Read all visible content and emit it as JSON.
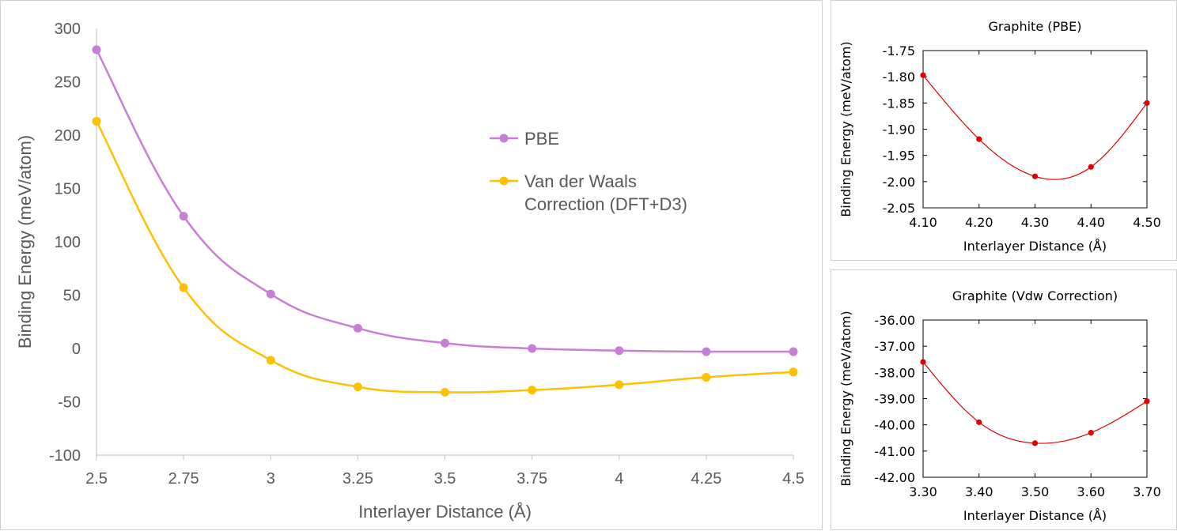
{
  "chart_data": [
    {
      "type": "line",
      "title": "",
      "xlabel": "Interlayer Distance (Å)",
      "ylabel": "Binding Energy (meV/atom)",
      "xlim": [
        2.5,
        4.5
      ],
      "ylim": [
        -100,
        300
      ],
      "x_ticks": [
        "2.5",
        "2.75",
        "3",
        "3.25",
        "3.5",
        "3.75",
        "4",
        "4.25",
        "4.5"
      ],
      "y_ticks": [
        "300",
        "250",
        "200",
        "150",
        "100",
        "50",
        "0",
        "-50",
        "-100"
      ],
      "x": [
        2.5,
        2.75,
        3.0,
        3.25,
        3.5,
        3.75,
        4.0,
        4.25,
        4.5
      ],
      "legend_position": "right-center",
      "grid": false,
      "series": [
        {
          "name": "PBE",
          "color": "#c77fd6",
          "values": [
            280,
            124,
            51,
            19,
            5,
            0,
            -2,
            -3,
            -3
          ]
        },
        {
          "name_lines": [
            "Van der Waals",
            "Correction (DFT+D3)"
          ],
          "color": "#ffc000",
          "values": [
            213,
            57,
            -11,
            -36,
            -41,
            -39,
            -34,
            -27,
            -22
          ]
        }
      ]
    },
    {
      "type": "line",
      "title": "Graphite (PBE)",
      "xlabel": "Interlayer Distance (Å)",
      "ylabel": "Binding Energy (meV/atom)",
      "xlim": [
        4.1,
        4.5
      ],
      "ylim": [
        -2.05,
        -1.75
      ],
      "x_ticks": [
        "4.10",
        "4.20",
        "4.30",
        "4.40",
        "4.50"
      ],
      "y_ticks": [
        "-1.75",
        "-1.80",
        "-1.85",
        "-1.90",
        "-1.95",
        "-2.00",
        "-2.05"
      ],
      "x": [
        4.1,
        4.2,
        4.3,
        4.4,
        4.5
      ],
      "color": "#e00000",
      "values": [
        -1.797,
        -1.919,
        -1.99,
        -1.972,
        -1.85
      ]
    },
    {
      "type": "line",
      "title": "Graphite (Vdw Correction)",
      "xlabel": "Interlayer Distance (Å)",
      "ylabel": "Binding Energy (meV/atom)",
      "xlim": [
        3.3,
        3.7
      ],
      "ylim": [
        -42,
        -36
      ],
      "x_ticks": [
        "3.30",
        "3.40",
        "3.50",
        "3.60",
        "3.70"
      ],
      "y_ticks": [
        "-36.00",
        "-37.00",
        "-38.00",
        "-39.00",
        "-40.00",
        "-41.00",
        "-42.00"
      ],
      "x": [
        3.3,
        3.4,
        3.5,
        3.6,
        3.7
      ],
      "color": "#e00000",
      "values": [
        -37.6,
        -39.9,
        -40.7,
        -40.3,
        -39.1
      ]
    }
  ]
}
